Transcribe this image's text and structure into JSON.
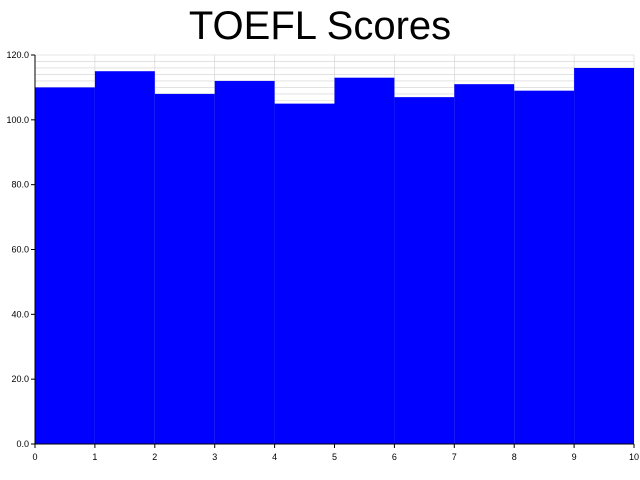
{
  "chart_data": {
    "type": "bar",
    "title": "TOEFL Scores",
    "xlabel": "",
    "ylabel": "",
    "x_bins": [
      [
        0,
        1
      ],
      [
        1,
        2
      ],
      [
        2,
        3
      ],
      [
        3,
        4
      ],
      [
        4,
        5
      ],
      [
        5,
        6
      ],
      [
        6,
        7
      ],
      [
        7,
        8
      ],
      [
        8,
        9
      ],
      [
        9,
        10
      ]
    ],
    "values": [
      110,
      115,
      108,
      112,
      105,
      113,
      107,
      111,
      109,
      116
    ],
    "xlim": [
      0,
      10
    ],
    "ylim": [
      0,
      120
    ],
    "x_ticks": [
      "0",
      "1",
      "2",
      "3",
      "4",
      "5",
      "6",
      "7",
      "8",
      "9",
      "10"
    ],
    "y_ticks": [
      "0.0",
      "20.0",
      "40.0",
      "60.0",
      "80.0",
      "100.0",
      "120.0"
    ],
    "y_tick_values": [
      0,
      20,
      40,
      60,
      80,
      100,
      120
    ],
    "grid": true,
    "bar_color": "#0000ff",
    "grid_color": "#d0d0d0"
  }
}
